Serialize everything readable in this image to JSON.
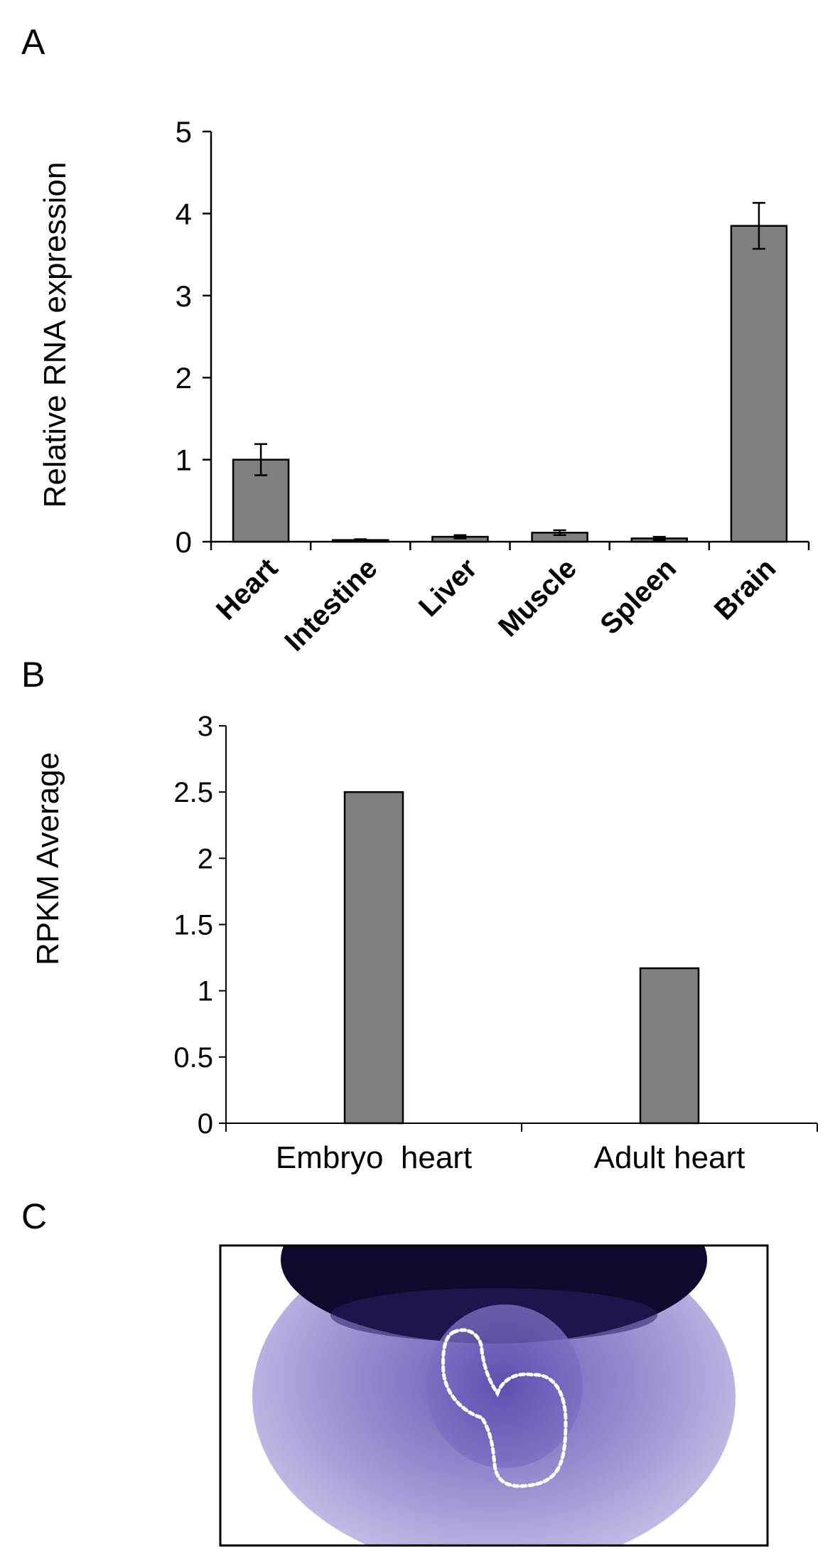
{
  "colors": {
    "bar": "#808080",
    "bar_stroke": "#000000",
    "axis": "#000000",
    "background": "#ffffff",
    "photo_purple": "#7a6cc0",
    "photo_dark": "#0e0a2e",
    "outline": "#ffffff"
  },
  "panels": {
    "a": {
      "label": "A"
    },
    "b": {
      "label": "B"
    },
    "c": {
      "label": "C"
    }
  },
  "chart_data": [
    {
      "panel": "A",
      "type": "bar",
      "title": "",
      "xlabel": "",
      "ylabel": "Relative RNA expression",
      "ylim": [
        0,
        5
      ],
      "yticks": [
        "0",
        "1",
        "2",
        "3",
        "4",
        "5"
      ],
      "grid": false,
      "categories": [
        "Heart",
        "Intestine",
        "Liver",
        "Muscle",
        "Spleen",
        "Brain"
      ],
      "values": [
        1.0,
        0.02,
        0.06,
        0.11,
        0.04,
        3.85
      ],
      "errors": [
        0.19,
        0.01,
        0.02,
        0.03,
        0.02,
        0.28
      ]
    },
    {
      "panel": "B",
      "type": "bar",
      "title": "",
      "xlabel": "",
      "ylabel": "RPKM Average",
      "ylim": [
        0,
        3
      ],
      "yticks": [
        "0",
        "0.5",
        "1",
        "1.5",
        "2",
        "2.5",
        "3"
      ],
      "grid": false,
      "categories": [
        "Embryo  heart",
        "Adult heart"
      ],
      "values": [
        2.5,
        1.17
      ]
    }
  ]
}
